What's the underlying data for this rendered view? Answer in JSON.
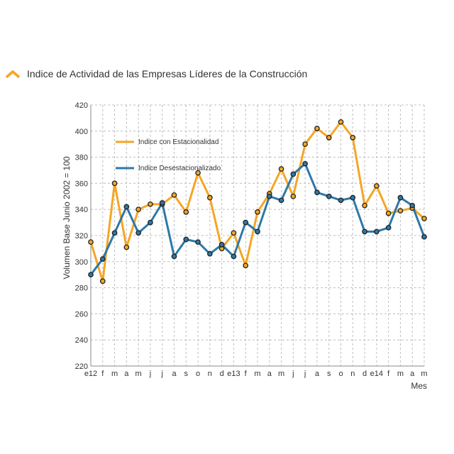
{
  "header": {
    "title": "Indice de Actividad de las Empresas Líderes de la Construcción",
    "icon": "chevron-up-icon"
  },
  "colors": {
    "seasonal": "#F5A623",
    "deseasonalized": "#2E78A8",
    "marker": "#222222",
    "grid": "#bdbdbd",
    "header_icon": "#F5A623"
  },
  "chart_data": {
    "type": "line",
    "title": "Indice de Actividad de las Empresas Líderes de la Construcción",
    "xlabel": "Mes",
    "ylabel": "Volumen Base Junio 2002 = 100",
    "ylim": [
      220,
      420
    ],
    "yticks": [
      220,
      240,
      260,
      280,
      300,
      320,
      340,
      360,
      380,
      400,
      420
    ],
    "categories": [
      "e12",
      "f",
      "m",
      "a",
      "m",
      "j",
      "j",
      "a",
      "s",
      "o",
      "n",
      "d",
      "e13",
      "f",
      "m",
      "a",
      "m",
      "j",
      "j",
      "a",
      "s",
      "o",
      "n",
      "d",
      "e14",
      "f",
      "m",
      "a",
      "m"
    ],
    "grid": true,
    "legend_position": "top-left",
    "series": [
      {
        "name": "Indice con Estacionalidad",
        "color": "#F5A623",
        "values": [
          315,
          285,
          360,
          311,
          340,
          344,
          344,
          351,
          338,
          368,
          349,
          310,
          322,
          297,
          338,
          352,
          371,
          350,
          390,
          402,
          395,
          407,
          395,
          343,
          358,
          337,
          339,
          341,
          333
        ]
      },
      {
        "name": "Indice Desestacionalizado",
        "color": "#2E78A8",
        "values": [
          290,
          302,
          322,
          342,
          322,
          330,
          345,
          304,
          317,
          315,
          306,
          313,
          304,
          330,
          323,
          350,
          347,
          367,
          375,
          353,
          350,
          347,
          349,
          323,
          323,
          326,
          349,
          343,
          319
        ]
      }
    ]
  }
}
